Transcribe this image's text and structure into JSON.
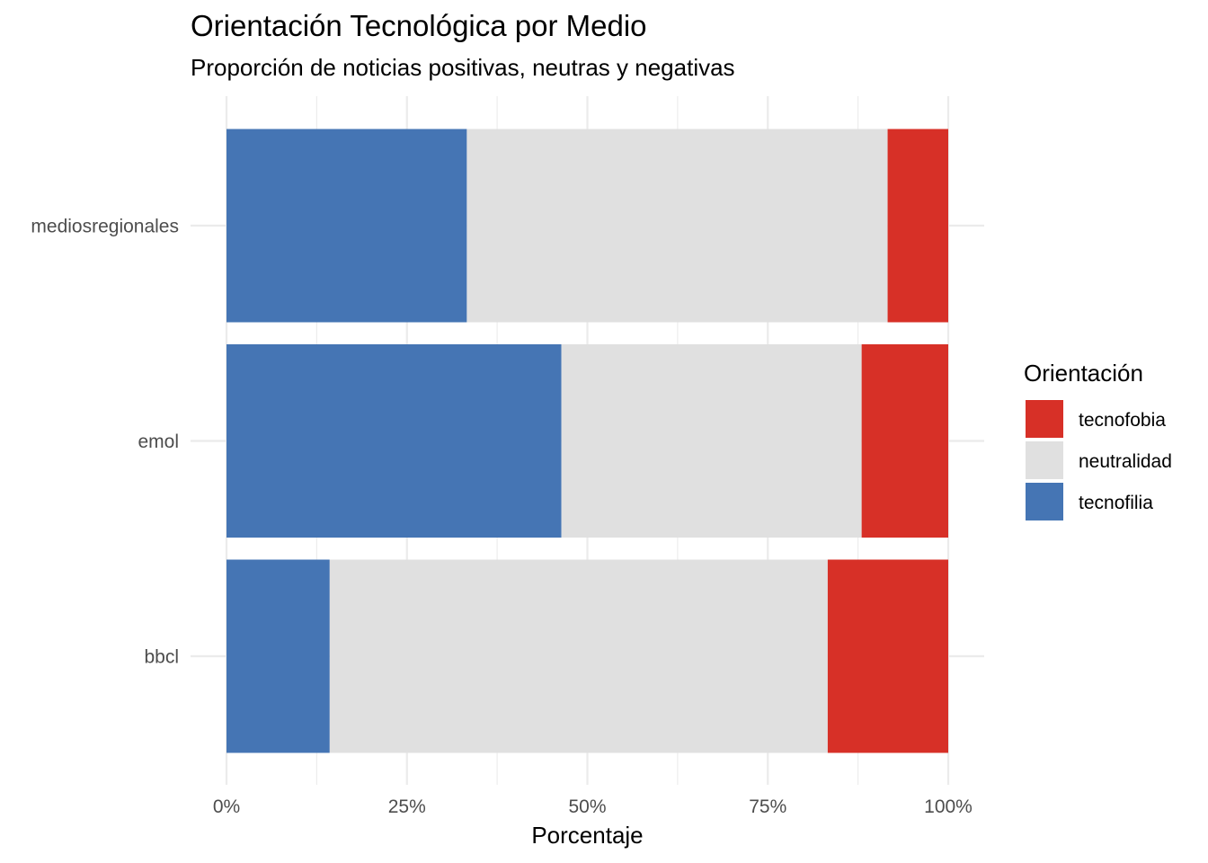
{
  "chart_data": {
    "type": "bar",
    "orientation": "horizontal",
    "stacked": true,
    "normalized": true,
    "title": "Orientación Tecnológica por Medio",
    "subtitle": "Proporción de noticias positivas, neutras y negativas",
    "xlabel": "Porcentaje",
    "ylabel": "",
    "xlim": [
      0,
      100
    ],
    "x_ticks": [
      0,
      25,
      50,
      75,
      100
    ],
    "x_tick_labels": [
      "0%",
      "25%",
      "50%",
      "75%",
      "100%"
    ],
    "categories": [
      "mediosregionales",
      "emol",
      "bbcl"
    ],
    "series": [
      {
        "name": "tecnofilia",
        "color": "#4575B4",
        "values": [
          33.3,
          46.4,
          14.3
        ]
      },
      {
        "name": "neutralidad",
        "color": "#E0E0E0",
        "values": [
          58.3,
          41.6,
          69.0
        ]
      },
      {
        "name": "tecnofobia",
        "color": "#D73027",
        "values": [
          8.4,
          12.0,
          16.7
        ]
      }
    ],
    "legend": {
      "title": "Orientación",
      "position": "right",
      "order": [
        "tecnofobia",
        "neutralidad",
        "tecnofilia"
      ]
    },
    "grid": true
  }
}
